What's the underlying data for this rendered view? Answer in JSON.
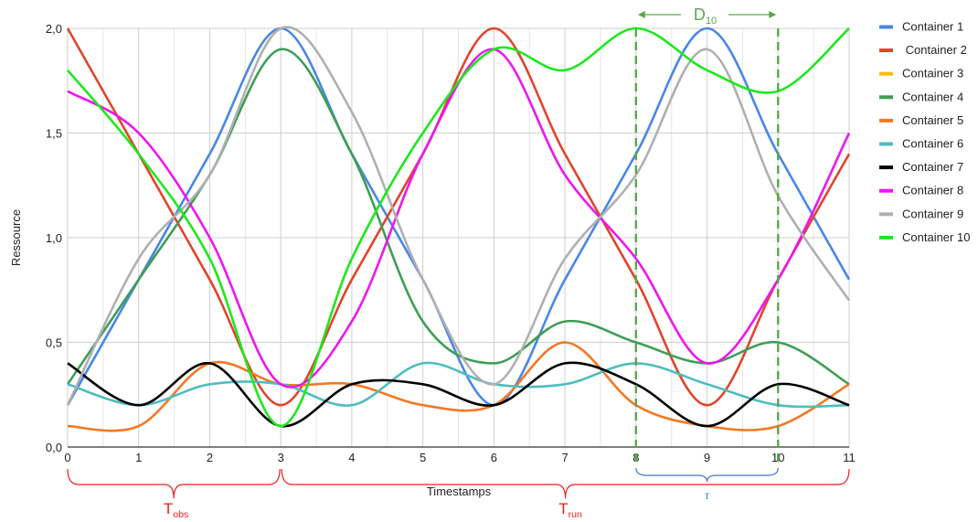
{
  "chart_data": {
    "type": "line",
    "xlabel": "Timestamps",
    "ylabel": "Ressource",
    "xlim": [
      0,
      11
    ],
    "ylim": [
      0,
      2
    ],
    "x_ticks": [
      "0",
      "1",
      "2",
      "3",
      "4",
      "5",
      "6",
      "7",
      "8",
      "9",
      "10",
      "11"
    ],
    "y_ticks": [
      "0,0",
      "0,5",
      "1,0",
      "1,5",
      "2,0"
    ],
    "grid": true,
    "legend_position": "right",
    "x": [
      0,
      1,
      2,
      3,
      4,
      5,
      6,
      7,
      8,
      9,
      10,
      11
    ],
    "series": [
      {
        "name": "Container 1",
        "color": "#4a86e8",
        "values": [
          0.2,
          0.8,
          1.4,
          2.0,
          1.4,
          0.8,
          0.2,
          0.8,
          1.4,
          2.0,
          1.4,
          0.8
        ]
      },
      {
        "name": " Container 2",
        "color": "#e0452b",
        "values": [
          2.0,
          1.4,
          0.8,
          0.2,
          0.8,
          1.4,
          2.0,
          1.4,
          0.8,
          0.2,
          0.8,
          1.4
        ]
      },
      {
        "name": "Container 3",
        "color": "#f9bc04",
        "values": [
          0.1,
          0.1,
          0.4,
          0.3,
          0.3,
          0.2,
          0.2,
          0.5,
          0.2,
          0.1,
          0.1,
          0.3
        ],
        "hidden": true
      },
      {
        "name": "Container 4",
        "color": "#3e9e54",
        "values": [
          0.3,
          0.8,
          1.3,
          1.9,
          1.4,
          0.6,
          0.4,
          0.6,
          0.5,
          0.4,
          0.5,
          0.3
        ]
      },
      {
        "name": "Container 5",
        "color": "#f37823",
        "values": [
          0.1,
          0.1,
          0.4,
          0.3,
          0.3,
          0.2,
          0.2,
          0.5,
          0.2,
          0.1,
          0.1,
          0.3
        ]
      },
      {
        "name": "Container 6",
        "color": "#4fbdbf",
        "values": [
          0.3,
          0.2,
          0.3,
          0.3,
          0.2,
          0.4,
          0.3,
          0.3,
          0.4,
          0.3,
          0.2,
          0.2
        ]
      },
      {
        "name": "Container 7",
        "color": "#000000",
        "values": [
          0.4,
          0.2,
          0.4,
          0.1,
          0.3,
          0.3,
          0.2,
          0.4,
          0.3,
          0.1,
          0.3,
          0.2
        ]
      },
      {
        "name": "Container 8",
        "color": "#ee16ee",
        "values": [
          1.7,
          1.5,
          1.0,
          0.3,
          0.6,
          1.4,
          1.9,
          1.3,
          0.9,
          0.4,
          0.8,
          1.5
        ]
      },
      {
        "name": "Container 9",
        "color": "#b0b0b0",
        "values": [
          0.2,
          0.9,
          1.3,
          2.0,
          1.6,
          0.8,
          0.3,
          0.9,
          1.3,
          1.9,
          1.2,
          0.7
        ]
      },
      {
        "name": "Container 10",
        "color": "#1ce81c",
        "values": [
          1.8,
          1.4,
          0.9,
          0.1,
          0.9,
          1.5,
          1.9,
          1.8,
          2.0,
          1.8,
          1.7,
          2.0
        ]
      }
    ],
    "annotations": {
      "t_obs": {
        "label": "T",
        "sub": "obs",
        "from": 0,
        "to": 3,
        "color": "#ee1c1c"
      },
      "t_run": {
        "label": "T",
        "sub": "run",
        "from": 3,
        "to": 11,
        "color": "#ee1c1c"
      },
      "tau": {
        "label": "τ",
        "from": 8,
        "to": 10,
        "color": "#4a76c8"
      },
      "d10": {
        "label": "D",
        "sub": "10",
        "from": 8,
        "to": 10,
        "color": "#5aa84c"
      }
    }
  }
}
